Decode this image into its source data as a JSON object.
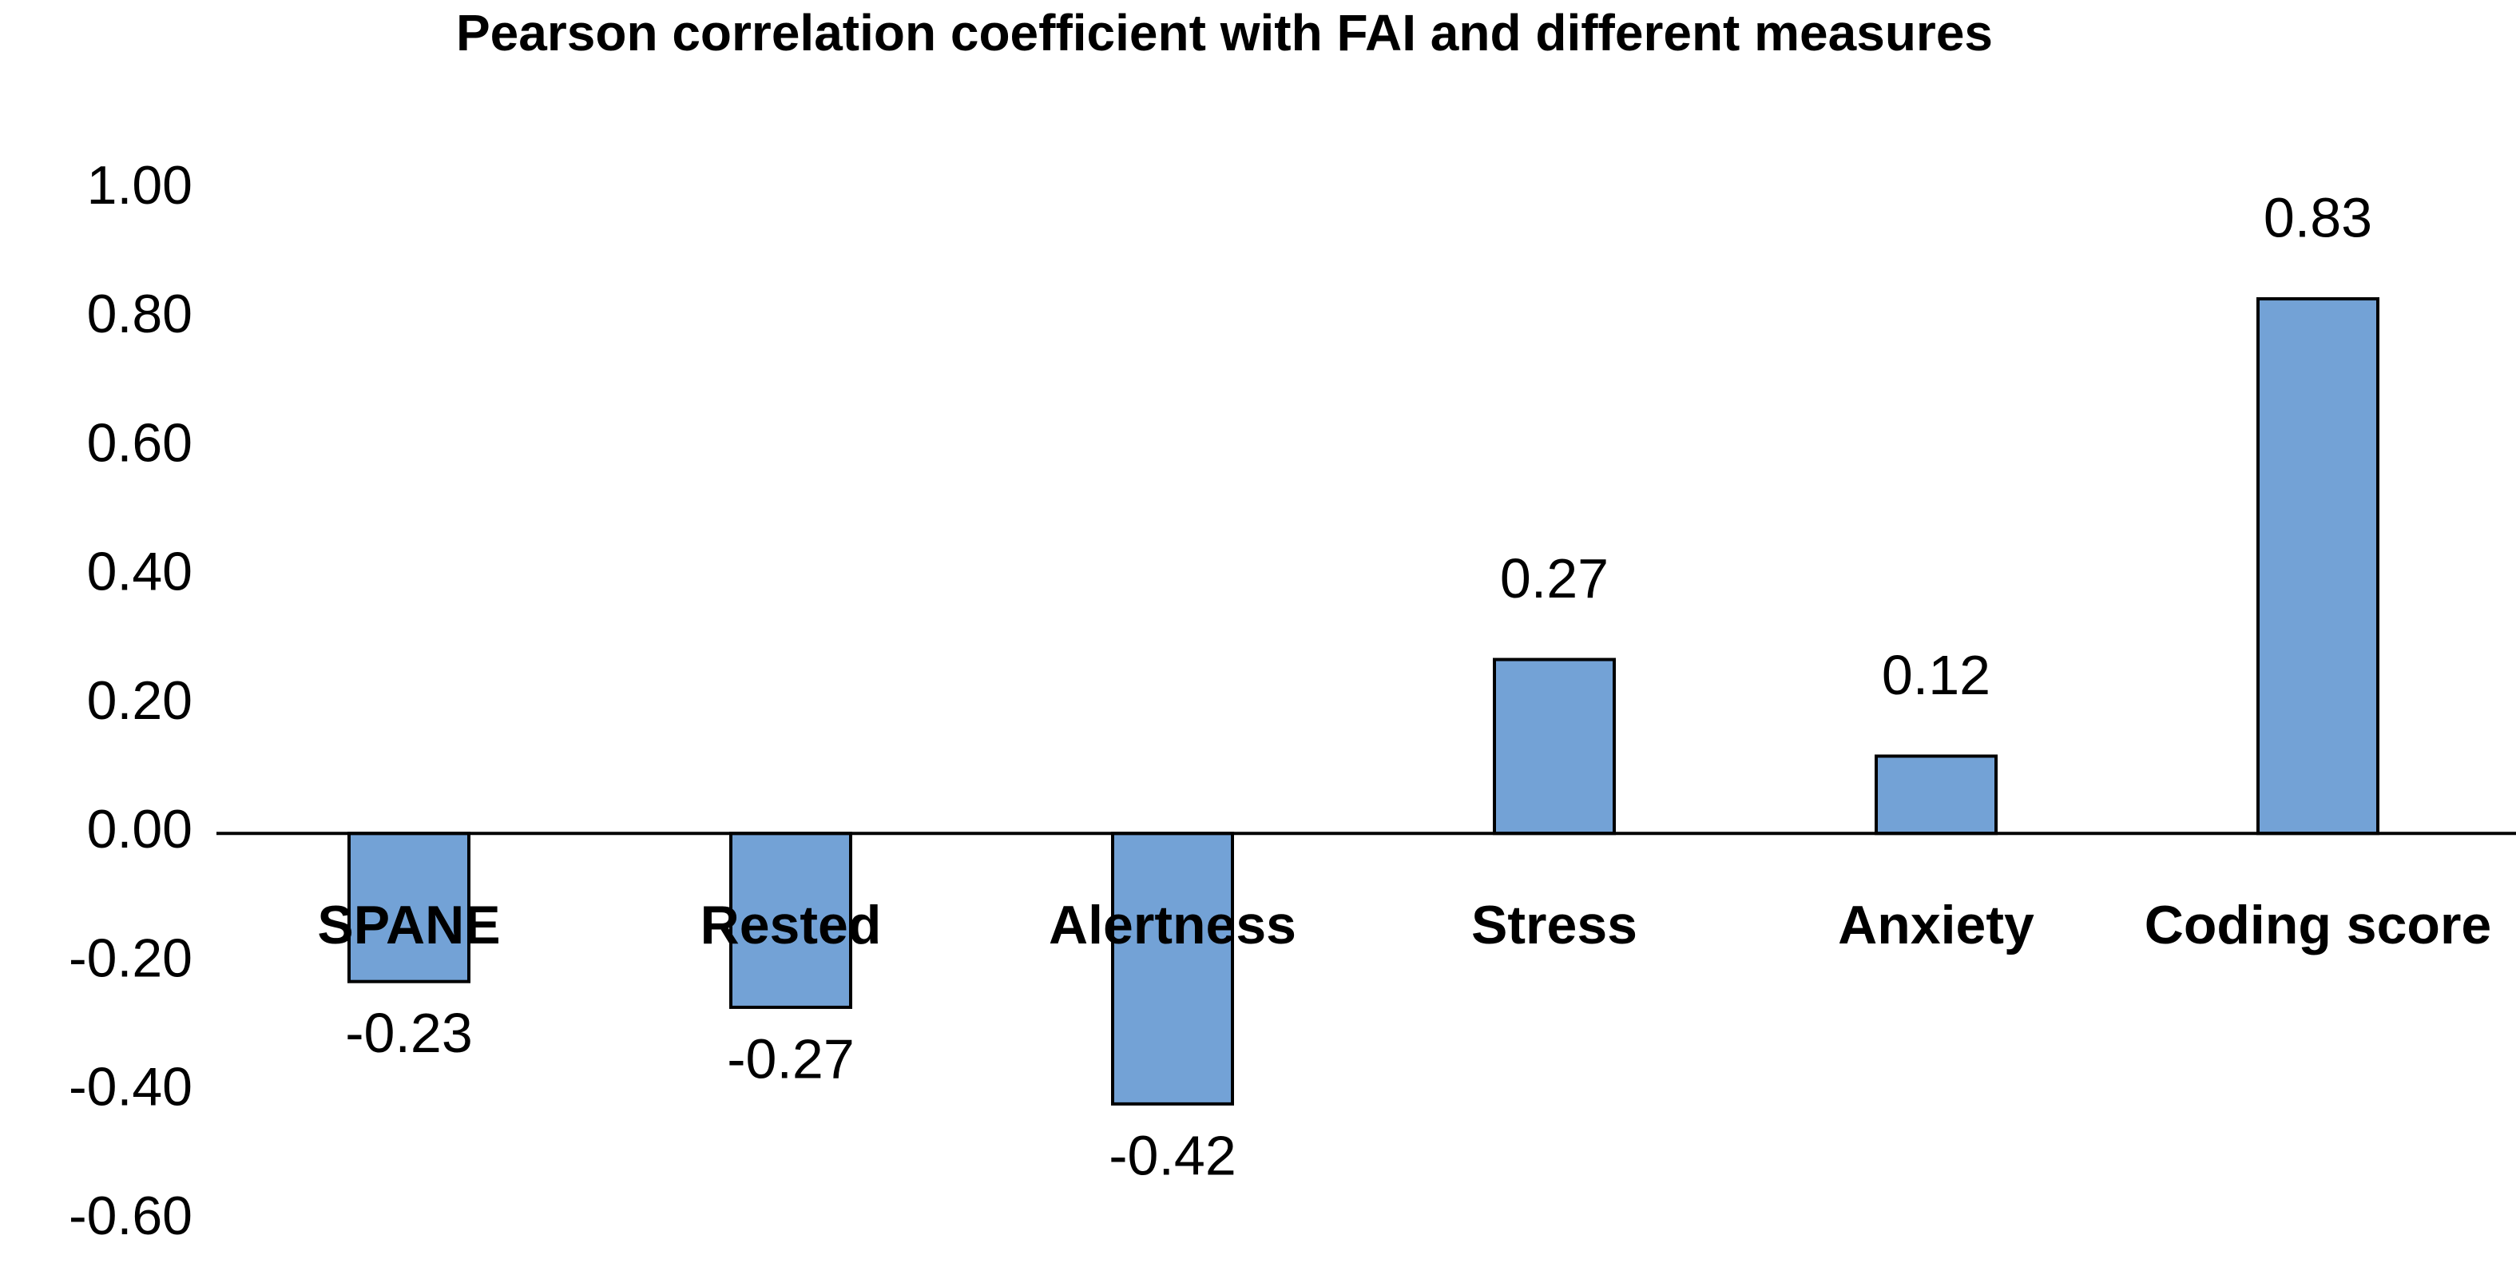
{
  "chart_data": {
    "type": "bar",
    "title": "Pearson correlation coefficient with FAI and different measures",
    "categories": [
      "SPANE",
      "Rested",
      "Alertness",
      "Stress",
      "Anxiety",
      "Coding score"
    ],
    "values": [
      -0.23,
      -0.27,
      -0.42,
      0.27,
      0.12,
      0.83
    ],
    "color": "#73a2d6",
    "ylim": [
      -0.6,
      1.0
    ],
    "yticks": [
      {
        "value": -0.6,
        "label": "-0.60"
      },
      {
        "value": -0.4,
        "label": "-0.40"
      },
      {
        "value": -0.2,
        "label": "-0.20"
      },
      {
        "value": 0,
        "label": "0.00"
      },
      {
        "value": 0.2,
        "label": "0.20"
      },
      {
        "value": 0.4,
        "label": "0.40"
      },
      {
        "value": 0.6,
        "label": "0.60"
      },
      {
        "value": 0.8,
        "label": "0.80"
      },
      {
        "value": 1.0,
        "label": "1.00"
      }
    ],
    "grid": false
  }
}
